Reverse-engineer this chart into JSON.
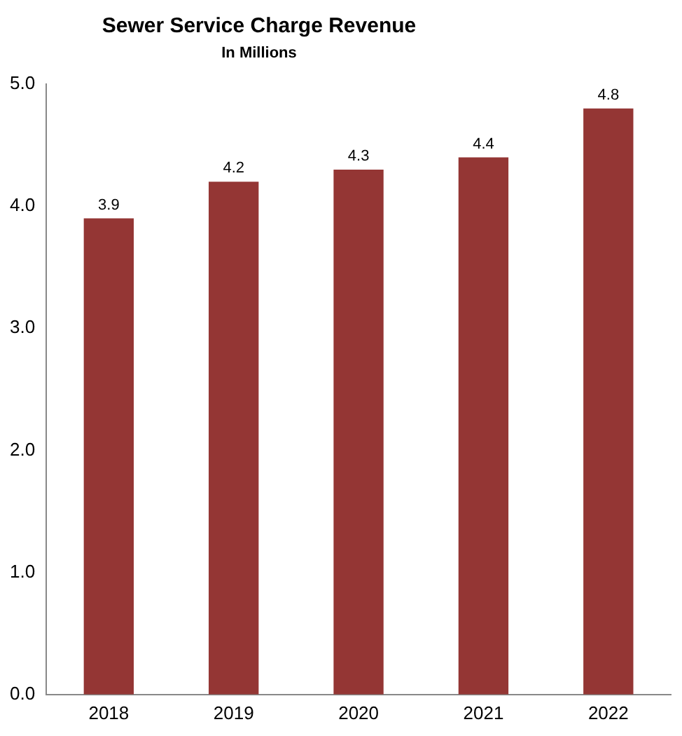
{
  "chart_data": {
    "type": "bar",
    "title": "Sewer Service Charge Revenue",
    "subtitle": "In Millions",
    "categories": [
      "2018",
      "2019",
      "2020",
      "2021",
      "2022"
    ],
    "values": [
      3.9,
      4.2,
      4.3,
      4.4,
      4.8
    ],
    "color": "#943634",
    "ylim": [
      0,
      5
    ],
    "yticks": [
      {
        "value": 0,
        "label": "0.0"
      },
      {
        "value": 1,
        "label": "1.0"
      },
      {
        "value": 2,
        "label": "2.0"
      },
      {
        "value": 3,
        "label": "3.0"
      },
      {
        "value": 4,
        "label": "4.0"
      },
      {
        "value": 5,
        "label": "5.0"
      }
    ],
    "grid": false,
    "data_labels": true
  }
}
